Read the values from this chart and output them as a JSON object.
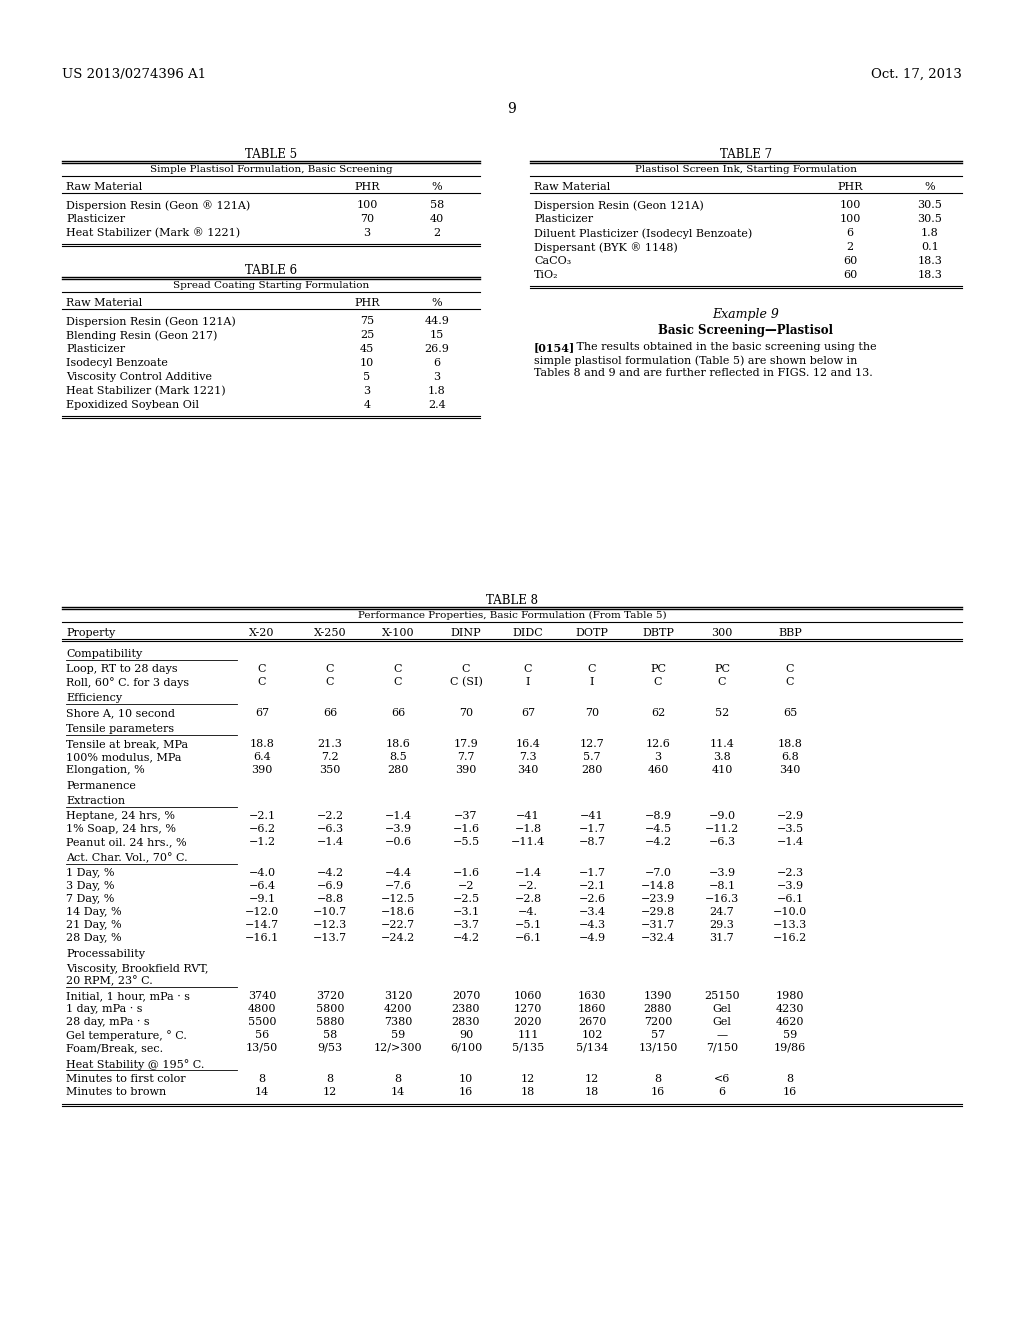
{
  "header_left": "US 2013/0274396 A1",
  "header_right": "Oct. 17, 2013",
  "page_number": "9",
  "background_color": "#ffffff",
  "table5_title": "TABLE 5",
  "table5_subtitle": "Simple Plastisol Formulation, Basic Screening",
  "table5_rows": [
    [
      "Dispersion Resin (Geon ® 121A)",
      "100",
      "58"
    ],
    [
      "Plasticizer",
      "70",
      "40"
    ],
    [
      "Heat Stabilizer (Mark ® 1221)",
      "3",
      "2"
    ]
  ],
  "table6_title": "TABLE 6",
  "table6_subtitle": "Spread Coating Starting Formulation",
  "table6_rows": [
    [
      "Dispersion Resin (Geon 121A)",
      "75",
      "44.9"
    ],
    [
      "Blending Resin (Geon 217)",
      "25",
      "15"
    ],
    [
      "Plasticizer",
      "45",
      "26.9"
    ],
    [
      "Isodecyl Benzoate",
      "10",
      "6"
    ],
    [
      "Viscosity Control Additive",
      "5",
      "3"
    ],
    [
      "Heat Stabilizer (Mark 1221)",
      "3",
      "1.8"
    ],
    [
      "Epoxidized Soybean Oil",
      "4",
      "2.4"
    ]
  ],
  "table7_title": "TABLE 7",
  "table7_subtitle": "Plastisol Screen Ink, Starting Formulation",
  "table7_rows": [
    [
      "Dispersion Resin (Geon 121A)",
      "100",
      "30.5"
    ],
    [
      "Plasticizer",
      "100",
      "30.5"
    ],
    [
      "Diluent Plasticizer (Isodecyl Benzoate)",
      "6",
      "1.8"
    ],
    [
      "Dispersant (BYK ® 1148)",
      "2",
      "0.1"
    ],
    [
      "CaCO₃",
      "60",
      "18.3"
    ],
    [
      "TiO₂",
      "60",
      "18.3"
    ]
  ],
  "example9_title": "Example 9",
  "example9_subtitle": "Basic Screening—Plastisol",
  "example9_para_bold": "[0154]",
  "example9_para_rest": "   The results obtained in the basic screening using the simple plastisol formulation (Table 5) are shown below in Tables 8 and 9 and are further reflected in FIGS. 12 and 13.",
  "example9_para_lines": [
    "   The results obtained in the basic screening using the",
    "simple plastisol formulation (Table 5) are shown below in",
    "Tables 8 and 9 and are further reflected in FIGS. 12 and 13."
  ],
  "table8_title": "TABLE 8",
  "table8_subtitle": "Performance Properties, Basic Formulation (From Table 5)",
  "table8_col_headers": [
    "Property",
    "X-20",
    "X-250",
    "X-100",
    "DINP",
    "DIDC",
    "DOTP",
    "DBTP",
    "300",
    "BBP"
  ],
  "table8_sections": [
    {
      "section_header": "Compatibility",
      "underline": true,
      "rows": [
        [
          "Loop, RT to 28 days",
          "C",
          "C",
          "C",
          "C",
          "C",
          "C",
          "PC",
          "PC",
          "C"
        ],
        [
          "Roll, 60° C. for 3 days",
          "C",
          "C",
          "C",
          "C (SI)",
          "I",
          "I",
          "C",
          "C",
          "C"
        ]
      ]
    },
    {
      "section_header": "Efficiency",
      "underline": true,
      "rows": [
        [
          "Shore A, 10 second",
          "67",
          "66",
          "66",
          "70",
          "67",
          "70",
          "62",
          "52",
          "65"
        ]
      ]
    },
    {
      "section_header": "Tensile parameters",
      "underline": true,
      "rows": [
        [
          "Tensile at break, MPa",
          "18.8",
          "21.3",
          "18.6",
          "17.9",
          "16.4",
          "12.7",
          "12.6",
          "11.4",
          "18.8"
        ],
        [
          "100% modulus, MPa",
          "6.4",
          "7.2",
          "8.5",
          "7.7",
          "7.3",
          "5.7",
          "3",
          "3.8",
          "6.8"
        ],
        [
          "Elongation, %",
          "390",
          "350",
          "280",
          "390",
          "340",
          "280",
          "460",
          "410",
          "340"
        ]
      ]
    },
    {
      "section_header": "Permanence",
      "underline": false,
      "rows": []
    },
    {
      "section_header": "Extraction",
      "underline": true,
      "rows": [
        [
          "Heptane, 24 hrs, %",
          "−2.1",
          "−2.2",
          "−1.4",
          "−37",
          "−41",
          "−41",
          "−8.9",
          "−9.0",
          "−2.9"
        ],
        [
          "1% Soap, 24 hrs, %",
          "−6.2",
          "−6.3",
          "−3.9",
          "−1.6",
          "−1.8",
          "−1.7",
          "−4.5",
          "−11.2",
          "−3.5"
        ],
        [
          "Peanut oil. 24 hrs., %",
          "−1.2",
          "−1.4",
          "−0.6",
          "−5.5",
          "−11.4",
          "−8.7",
          "−4.2",
          "−6.3",
          "−1.4"
        ]
      ]
    },
    {
      "section_header": "Act. Char. Vol., 70° C.",
      "underline": true,
      "rows": [
        [
          "1 Day, %",
          "−4.0",
          "−4.2",
          "−4.4",
          "−1.6",
          "−1.4",
          "−1.7",
          "−7.0",
          "−3.9",
          "−2.3"
        ],
        [
          "3 Day, %",
          "−6.4",
          "−6.9",
          "−7.6",
          "−2",
          "−2.",
          "−2.1",
          "−14.8",
          "−8.1",
          "−3.9"
        ],
        [
          "7 Day, %",
          "−9.1",
          "−8.8",
          "−12.5",
          "−2.5",
          "−2.8",
          "−2.6",
          "−23.9",
          "−16.3",
          "−6.1"
        ],
        [
          "14 Day, %",
          "−12.0",
          "−10.7",
          "−18.6",
          "−3.1",
          "−4.",
          "−3.4",
          "−29.8",
          "24.7",
          "−10.0"
        ],
        [
          "21 Day, %",
          "−14.7",
          "−12.3",
          "−22.7",
          "−3.7",
          "−5.1",
          "−4.3",
          "−31.7",
          "29.3",
          "−13.3"
        ],
        [
          "28 Day, %",
          "−16.1",
          "−13.7",
          "−24.2",
          "−4.2",
          "−6.1",
          "−4.9",
          "−32.4",
          "31.7",
          "−16.2"
        ]
      ]
    },
    {
      "section_header": "Processability",
      "underline": false,
      "rows": []
    },
    {
      "section_header_line1": "Viscosity, Brookfield RVT,",
      "section_header_line2": "20 RPM, 23° C.",
      "underline": true,
      "rows": [
        [
          "Initial, 1 hour, mPa · s",
          "3740",
          "3720",
          "3120",
          "2070",
          "1060",
          "1630",
          "1390",
          "25150",
          "1980"
        ],
        [
          "1 day, mPa · s",
          "4800",
          "5800",
          "4200",
          "2380",
          "1270",
          "1860",
          "2880",
          "Gel",
          "4230"
        ],
        [
          "28 day, mPa · s",
          "5500",
          "5880",
          "7380",
          "2830",
          "2020",
          "2670",
          "7200",
          "Gel",
          "4620"
        ],
        [
          "Gel temperature, ° C.",
          "56",
          "58",
          "59",
          "90",
          "111",
          "102",
          "57",
          "—",
          "59"
        ],
        [
          "Foam/Break, sec.",
          "13/50",
          "9/53",
          "12/>300",
          "6/100",
          "5/135",
          "5/134",
          "13/150",
          "7/150",
          "19/86"
        ]
      ]
    },
    {
      "section_header": "Heat Stability @ 195° C.",
      "underline": true,
      "rows": [
        [
          "Minutes to first color",
          "8",
          "8",
          "8",
          "10",
          "12",
          "12",
          "8",
          "<6",
          "8"
        ],
        [
          "Minutes to brown",
          "14",
          "12",
          "14",
          "16",
          "18",
          "18",
          "16",
          "6",
          "16"
        ]
      ]
    }
  ]
}
